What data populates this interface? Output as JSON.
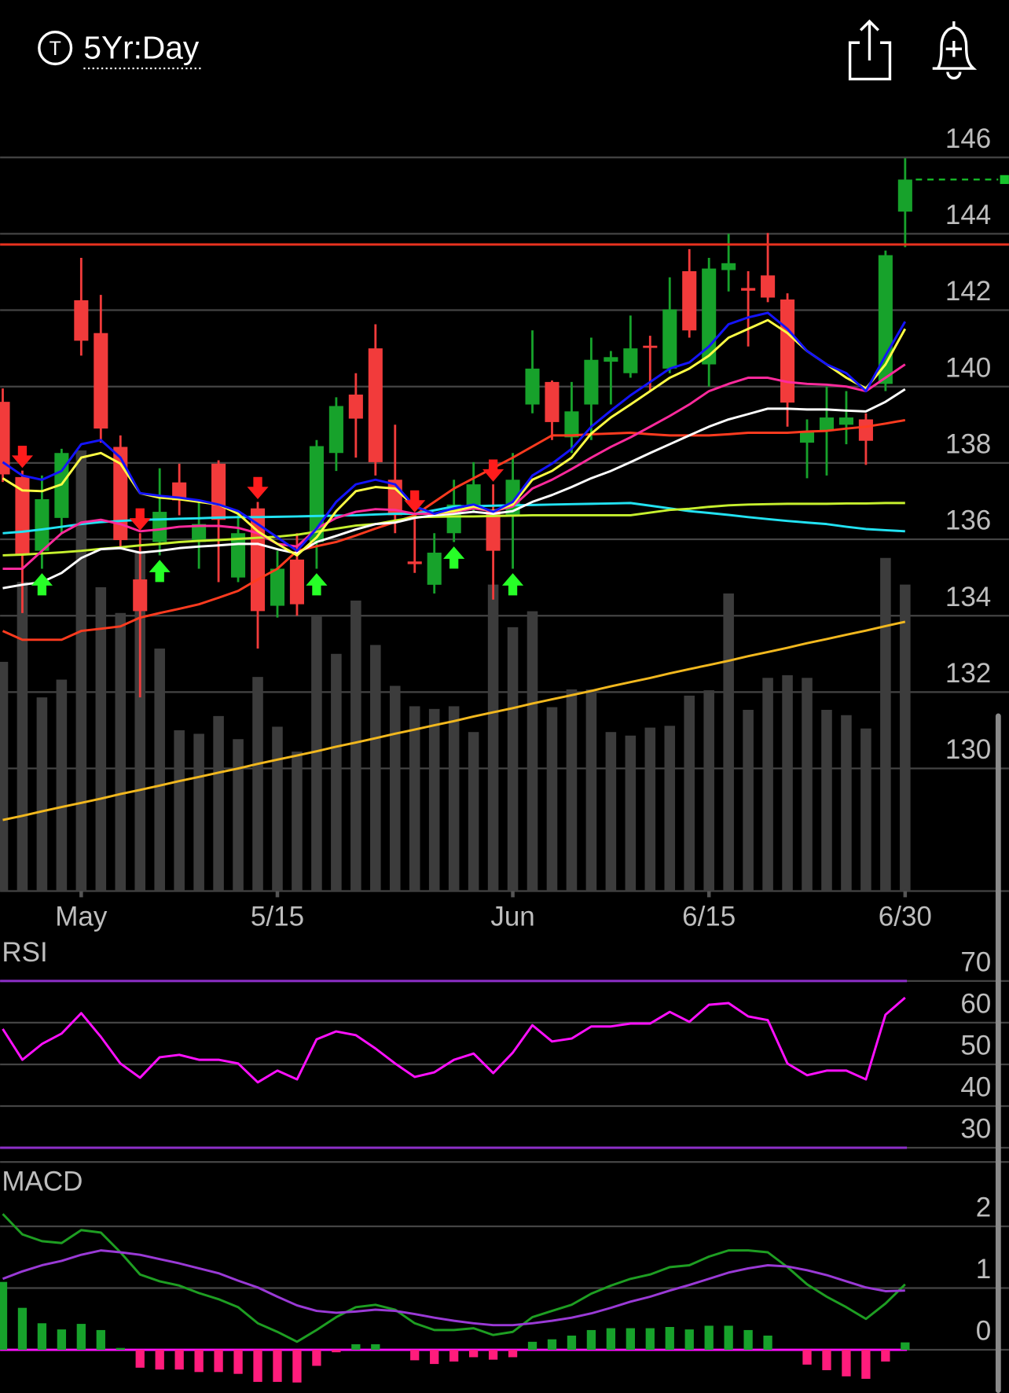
{
  "header": {
    "icon": "T",
    "title": "5Yr:Day"
  },
  "chart_data": [
    {
      "type": "candlestick",
      "categories": [
        null,
        null,
        null,
        null,
        "May",
        null,
        null,
        null,
        null,
        null,
        null,
        null,
        null,
        null,
        "5/15",
        null,
        null,
        null,
        null,
        null,
        null,
        null,
        null,
        null,
        null,
        null,
        "Jun",
        null,
        null,
        null,
        null,
        null,
        null,
        null,
        null,
        null,
        "6/15",
        null,
        null,
        null,
        null,
        null,
        null,
        null,
        null,
        null,
        "6/30"
      ],
      "open": [
        139.6,
        137.63,
        135.7,
        136.56,
        142.26,
        141.4,
        138.42,
        134.95,
        135.93,
        137.49,
        135.93,
        137.98,
        135,
        136.81,
        134.26,
        135.47,
        135.93,
        138.26,
        139.79,
        141,
        137.56,
        135.42,
        134.81,
        136.16,
        136.86,
        136.74,
        136.63,
        139.53,
        140.12,
        138.67,
        139.53,
        140.65,
        140.35,
        141.07,
        140.47,
        143.02,
        140.58,
        143.05,
        142.58,
        142.91,
        142.28,
        138.53,
        138.84,
        139,
        139.14,
        140.07,
        144.58
      ],
      "high": [
        139.95,
        137.8,
        137.67,
        138.37,
        143.37,
        142.4,
        138.72,
        136.16,
        137.86,
        137.98,
        136.98,
        138.07,
        136.74,
        136.98,
        135.7,
        136.16,
        138.6,
        139.72,
        140.35,
        141.63,
        139,
        136.63,
        136.16,
        137.56,
        138.02,
        137.44,
        138.26,
        141.47,
        140.16,
        140.12,
        141.28,
        140.93,
        141.86,
        141.33,
        142.86,
        143.6,
        143.37,
        144,
        143.02,
        144.02,
        142.44,
        139.14,
        140,
        139.88,
        139.3,
        143.56,
        145.98
      ],
      "low": [
        137.5,
        134.07,
        135.23,
        136.16,
        140.81,
        138.53,
        135.81,
        131.86,
        135.58,
        136.63,
        135.23,
        134.88,
        134.88,
        133.14,
        133.95,
        134,
        135.23,
        137.79,
        138.14,
        137.67,
        136.16,
        135.12,
        134.58,
        135.93,
        136.74,
        134.42,
        135.23,
        139.3,
        138.6,
        138.26,
        138.6,
        139.53,
        140.23,
        139.88,
        140.35,
        141.28,
        140,
        142.49,
        141.05,
        142.21,
        138.95,
        137.6,
        137.67,
        138.49,
        137.95,
        139.88,
        143.65
      ],
      "close": [
        137.7,
        135.58,
        137.05,
        138.26,
        141.2,
        138.9,
        135.98,
        134.12,
        136.72,
        137.02,
        136.4,
        136.51,
        136.16,
        134.12,
        135.23,
        134.3,
        138.44,
        139.49,
        139.16,
        138.02,
        136.63,
        135.35,
        135.65,
        136.91,
        137.44,
        135.7,
        137.56,
        140.47,
        139.07,
        139.35,
        140.7,
        140.77,
        141,
        141.02,
        142.02,
        141.47,
        143.09,
        143.23,
        142.51,
        142.33,
        139.58,
        138.81,
        139.19,
        139.19,
        138.58,
        143.44,
        145.42
      ],
      "volume": [
        25.8,
        34.8,
        21.8,
        23.8,
        49.6,
        34.2,
        31.3,
        38.3,
        27.3,
        18.1,
        17.7,
        19.7,
        17.1,
        24.1,
        18.5,
        15.7,
        31,
        26.7,
        32.7,
        27.7,
        23.1,
        20.8,
        20.5,
        20.8,
        17.9,
        34.5,
        29.7,
        31.5,
        20.7,
        22.7,
        22.7,
        17.9,
        17.5,
        18.4,
        18.6,
        22,
        22.6,
        33.5,
        20.4,
        24,
        24.3,
        24,
        20.4,
        19.8,
        18.3,
        37.5,
        34.5
      ],
      "up_color": "#17a22b",
      "down_color": "#f23b3b",
      "volume_color": "#3c3c3c",
      "series": [
        {
          "color": "#f2b81e",
          "values": [
            128.65,
            128.76,
            128.88,
            128.99,
            129.1,
            129.21,
            129.33,
            129.44,
            129.55,
            129.67,
            129.78,
            129.89,
            130.0,
            130.12,
            130.23,
            130.34,
            130.45,
            130.57,
            130.68,
            130.79,
            130.91,
            131.02,
            131.13,
            131.24,
            131.36,
            131.47,
            131.58,
            131.7,
            131.81,
            131.92,
            132.03,
            132.15,
            132.26,
            132.37,
            132.49,
            132.6,
            132.71,
            132.82,
            132.94,
            133.05,
            133.16,
            133.28,
            133.39,
            133.5,
            133.61,
            133.73,
            133.84
          ]
        },
        {
          "color": "#ff3b1f",
          "values": [
            133.6,
            133.37,
            133.37,
            133.37,
            133.6,
            133.66,
            133.72,
            133.95,
            134.07,
            134.18,
            134.3,
            134.47,
            134.65,
            134.95,
            135.23,
            135.7,
            135.82,
            135.93,
            136.1,
            136.28,
            136.45,
            136.63,
            136.98,
            137.33,
            137.6,
            137.87,
            138.14,
            138.43,
            138.72,
            138.72,
            138.75,
            138.77,
            138.79,
            138.75,
            138.72,
            138.72,
            138.72,
            138.75,
            138.79,
            138.79,
            138.79,
            138.82,
            138.84,
            138.9,
            138.95,
            139.03,
            139.12
          ]
        },
        {
          "color": "#22e2f2",
          "values": [
            136.16,
            136.2,
            136.26,
            136.33,
            136.4,
            136.45,
            136.48,
            136.51,
            136.52,
            136.54,
            136.55,
            136.57,
            136.58,
            136.58,
            136.59,
            136.6,
            136.61,
            136.62,
            136.63,
            136.65,
            136.67,
            136.67,
            136.76,
            136.86,
            136.87,
            136.88,
            136.89,
            136.9,
            136.91,
            136.92,
            136.93,
            136.94,
            136.95,
            136.88,
            136.81,
            136.74,
            136.69,
            136.64,
            136.58,
            136.53,
            136.48,
            136.44,
            136.4,
            136.33,
            136.27,
            136.24,
            136.21
          ]
        },
        {
          "color": "#c6f02e",
          "values": [
            135.58,
            135.6,
            135.63,
            135.66,
            135.7,
            135.75,
            135.79,
            135.84,
            135.88,
            135.93,
            135.96,
            135.98,
            136.01,
            136.04,
            136.07,
            136.12,
            136.2,
            136.28,
            136.36,
            136.4,
            136.49,
            136.58,
            136.59,
            136.6,
            136.6,
            136.61,
            136.62,
            136.63,
            136.63,
            136.63,
            136.63,
            136.63,
            136.63,
            136.7,
            136.77,
            136.8,
            136.85,
            136.89,
            136.91,
            136.92,
            136.93,
            136.93,
            136.93,
            136.94,
            136.94,
            136.95,
            136.95
          ]
        },
        {
          "color": "#ffffff",
          "values": [
            134.72,
            134.81,
            134.88,
            135.12,
            135.51,
            135.74,
            135.77,
            135.65,
            135.7,
            135.77,
            135.81,
            135.84,
            135.88,
            135.88,
            135.74,
            135.63,
            135.93,
            136.09,
            136.26,
            136.4,
            136.44,
            136.56,
            136.63,
            136.67,
            136.72,
            136.67,
            136.74,
            136.98,
            137.16,
            137.37,
            137.6,
            137.79,
            138.02,
            138.26,
            138.49,
            138.72,
            138.95,
            139.14,
            139.28,
            139.42,
            139.42,
            139.4,
            139.4,
            139.37,
            139.35,
            139.6,
            139.93
          ]
        },
        {
          "color": "#ff2a9c",
          "values": [
            135.23,
            135.23,
            135.7,
            136.16,
            136.44,
            136.51,
            136.4,
            136.21,
            136.26,
            136.33,
            136.35,
            136.35,
            136.3,
            136.16,
            135.88,
            135.81,
            136.28,
            136.56,
            136.72,
            136.79,
            136.77,
            136.67,
            136.67,
            136.72,
            136.81,
            136.74,
            136.86,
            137.33,
            137.56,
            137.84,
            138.14,
            138.42,
            138.67,
            138.95,
            139.23,
            139.53,
            139.88,
            140.07,
            140.23,
            140.23,
            140.12,
            140.07,
            140.05,
            140,
            139.88,
            140.23,
            140.58
          ]
        },
        {
          "color": "#ffff44",
          "values": [
            137.6,
            137.28,
            137.26,
            137.44,
            138.14,
            138.26,
            137.98,
            137.21,
            137.09,
            137.05,
            136.98,
            136.91,
            136.67,
            136.21,
            135.88,
            135.58,
            136.05,
            136.74,
            137.26,
            137.37,
            137.33,
            136.86,
            136.67,
            136.74,
            136.86,
            136.74,
            136.91,
            137.56,
            137.79,
            138.14,
            138.77,
            139.19,
            139.53,
            139.88,
            140.23,
            140.47,
            140.81,
            141.28,
            141.51,
            141.74,
            141.4,
            140.93,
            140.58,
            140.23,
            139.95,
            140.58,
            141.51
          ]
        },
        {
          "color": "#1414ff",
          "values": [
            138.02,
            137.67,
            137.56,
            137.79,
            138.49,
            138.6,
            138.14,
            137.21,
            137.14,
            137.09,
            137.02,
            136.91,
            136.74,
            136.4,
            136.05,
            135.7,
            136.28,
            136.98,
            137.44,
            137.56,
            137.44,
            136.86,
            136.67,
            136.81,
            136.91,
            136.72,
            136.98,
            137.67,
            137.98,
            138.37,
            138.95,
            139.37,
            139.77,
            140.12,
            140.47,
            140.63,
            141.05,
            141.63,
            141.81,
            141.93,
            141.51,
            140.93,
            140.58,
            140.35,
            139.88,
            140.81,
            141.7
          ]
        }
      ],
      "sell_signals": [
        1,
        7,
        13,
        21,
        25
      ],
      "sell_color": "#ff1c1c",
      "buy_signals": [
        2,
        8,
        16,
        23,
        26
      ],
      "buy_color": "#27ff27",
      "hline": {
        "value": 143.72,
        "color": "#e8321f"
      },
      "last_price_color": "#17c22b",
      "ylim": [
        126.79,
        147.33
      ],
      "yticks": [
        146,
        144,
        142,
        140,
        138,
        136,
        134,
        132,
        130
      ],
      "grid": true
    },
    {
      "type": "line",
      "title": "RSI",
      "series": [
        {
          "color": "#ff10ff",
          "values": [
            58.5,
            51.1,
            54.9,
            57.4,
            62.3,
            56.6,
            50.2,
            46.8,
            51.7,
            52.3,
            51.1,
            51.1,
            50.2,
            45.7,
            48.5,
            46.4,
            56.0,
            57.9,
            57.0,
            53.8,
            50.2,
            47.0,
            48.1,
            51.1,
            52.6,
            47.9,
            52.8,
            59.4,
            55.5,
            56.2,
            59.1,
            59.1,
            59.8,
            59.8,
            62.6,
            60.2,
            64.3,
            64.7,
            61.5,
            60.6,
            50.2,
            47.4,
            48.5,
            48.5,
            46.4,
            61.9,
            66.0
          ]
        }
      ],
      "levels": [
        70,
        30
      ],
      "level_color": "#8d2fc8",
      "ylim": [
        27,
        79
      ],
      "yticks": [
        70,
        60,
        50,
        40,
        30
      ],
      "grid": true
    },
    {
      "type": "line",
      "title": "MACD",
      "series": [
        {
          "color": "#1e9e22",
          "values": [
            2.2,
            1.87,
            1.76,
            1.73,
            1.94,
            1.9,
            1.58,
            1.22,
            1.11,
            1.04,
            0.92,
            0.82,
            0.69,
            0.43,
            0.29,
            0.13,
            0.32,
            0.53,
            0.69,
            0.73,
            0.65,
            0.43,
            0.32,
            0.32,
            0.35,
            0.24,
            0.29,
            0.53,
            0.63,
            0.73,
            0.91,
            1.04,
            1.15,
            1.22,
            1.34,
            1.37,
            1.51,
            1.61,
            1.61,
            1.58,
            1.34,
            1.06,
            0.86,
            0.69,
            0.5,
            0.75,
            1.06
          ]
        },
        {
          "color": "#9a3ad6",
          "values": [
            1.15,
            1.27,
            1.37,
            1.44,
            1.54,
            1.61,
            1.58,
            1.54,
            1.47,
            1.4,
            1.32,
            1.24,
            1.12,
            1.01,
            0.86,
            0.72,
            0.63,
            0.6,
            0.62,
            0.65,
            0.63,
            0.58,
            0.52,
            0.47,
            0.43,
            0.4,
            0.4,
            0.43,
            0.47,
            0.52,
            0.59,
            0.68,
            0.78,
            0.86,
            0.96,
            1.05,
            1.15,
            1.25,
            1.32,
            1.37,
            1.35,
            1.29,
            1.21,
            1.11,
            1.01,
            0.95,
            0.96
          ]
        }
      ],
      "histogram": {
        "values": [
          1.1,
          0.68,
          0.43,
          0.33,
          0.42,
          0.32,
          0.03,
          -0.29,
          -0.32,
          -0.32,
          -0.36,
          -0.36,
          -0.39,
          -0.52,
          -0.52,
          -0.53,
          -0.26,
          -0.04,
          0.09,
          0.09,
          0,
          -0.17,
          -0.23,
          -0.19,
          -0.12,
          -0.16,
          -0.12,
          0.13,
          0.17,
          0.23,
          0.32,
          0.35,
          0.35,
          0.35,
          0.37,
          0.33,
          0.39,
          0.39,
          0.32,
          0.23,
          0,
          -0.24,
          -0.33,
          -0.43,
          -0.47,
          -0.19,
          0.12
        ],
        "up_color": "#17a22b",
        "down_color": "#ff1c7c"
      },
      "levels": [
        0
      ],
      "level_color": "#ff10ff",
      "ylim": [
        -0.7,
        2.87
      ],
      "yticks": [
        2,
        1,
        0
      ],
      "grid": true
    }
  ]
}
